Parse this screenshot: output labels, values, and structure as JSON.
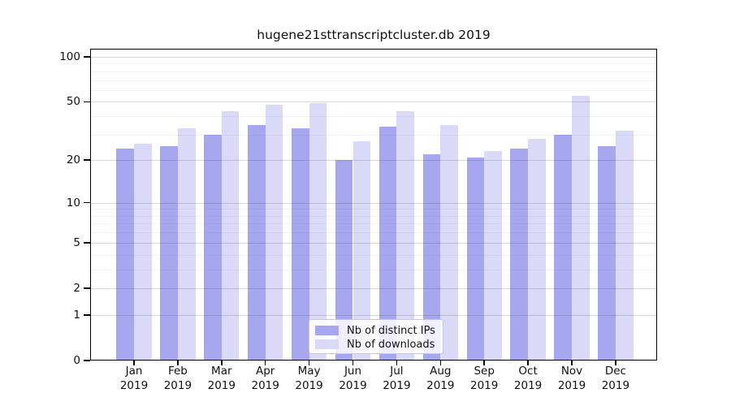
{
  "chart_data": {
    "type": "bar",
    "title": "hugene21sttranscriptcluster.db 2019",
    "months": [
      "Jan",
      "Feb",
      "Mar",
      "Apr",
      "May",
      "Jun",
      "Jul",
      "Aug",
      "Sep",
      "Oct",
      "Nov",
      "Dec"
    ],
    "year": "2019",
    "series": [
      {
        "name": "Nb of distinct IPs",
        "color": "#a7a7f0",
        "values": [
          24,
          25,
          30,
          35,
          33,
          20,
          34,
          22,
          21,
          24,
          30,
          25
        ]
      },
      {
        "name": "Nb of downloads",
        "color": "#dadaf8",
        "values": [
          26,
          33,
          43,
          48,
          49,
          27,
          43,
          35,
          23,
          28,
          55,
          32
        ]
      }
    ],
    "yscale": "log1p",
    "ylim": [
      0,
      113
    ],
    "yticks": [
      0,
      1,
      2,
      5,
      10,
      20,
      50,
      100
    ],
    "yticks_minor": [
      3,
      4,
      6,
      7,
      8,
      9,
      30,
      40,
      60,
      70,
      80,
      90
    ],
    "grid": true,
    "grid_major_color": "#d2d2d2",
    "grid_minor_color": "#ededed",
    "legend_position": "lower center",
    "xlabel": "",
    "ylabel": ""
  }
}
